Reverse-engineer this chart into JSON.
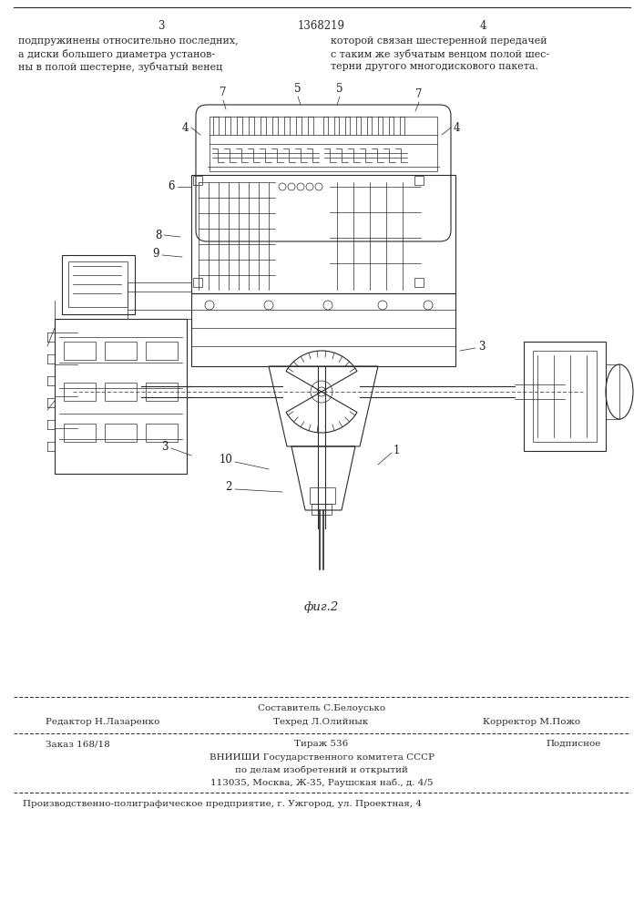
{
  "page_bg": "#ffffff",
  "header": {
    "page_left": "3",
    "patent_number": "1368219",
    "page_right": "4"
  },
  "col_left_text": [
    "подпружинены относительно последних,",
    "а диски большего диаметра установ-",
    "ны в полой шестерне, зубчатый венец"
  ],
  "col_right_text": [
    "которой связан шестеренной передачей",
    "с таким же зубчатым венцом полой шес-",
    "терни другого многодискового пакета."
  ],
  "fig_caption": "фиг.2",
  "footer_sost_label": "Составитель С.Белоусько",
  "footer_red": "Редактор Н.Лазаренко",
  "footer_tekh": "Техред Л.Олийнык",
  "footer_korr": "Корректор М.Пожо",
  "footer_order": "Заказ 168/18",
  "footer_tirazh": "Тираж 536",
  "footer_podpisnoe": "Подписное",
  "footer_vniishi": "ВНИИШИ Государственного комитета СССР",
  "footer_po_delam": "по делам изобретений и открытий",
  "footer_address": "113035, Москва, Ж-35, Раушская наб., д. 4/5",
  "footer_proizvod": "Производственно-полиграфическое предприятие, г. Ужгород, ул. Проектная, 4"
}
